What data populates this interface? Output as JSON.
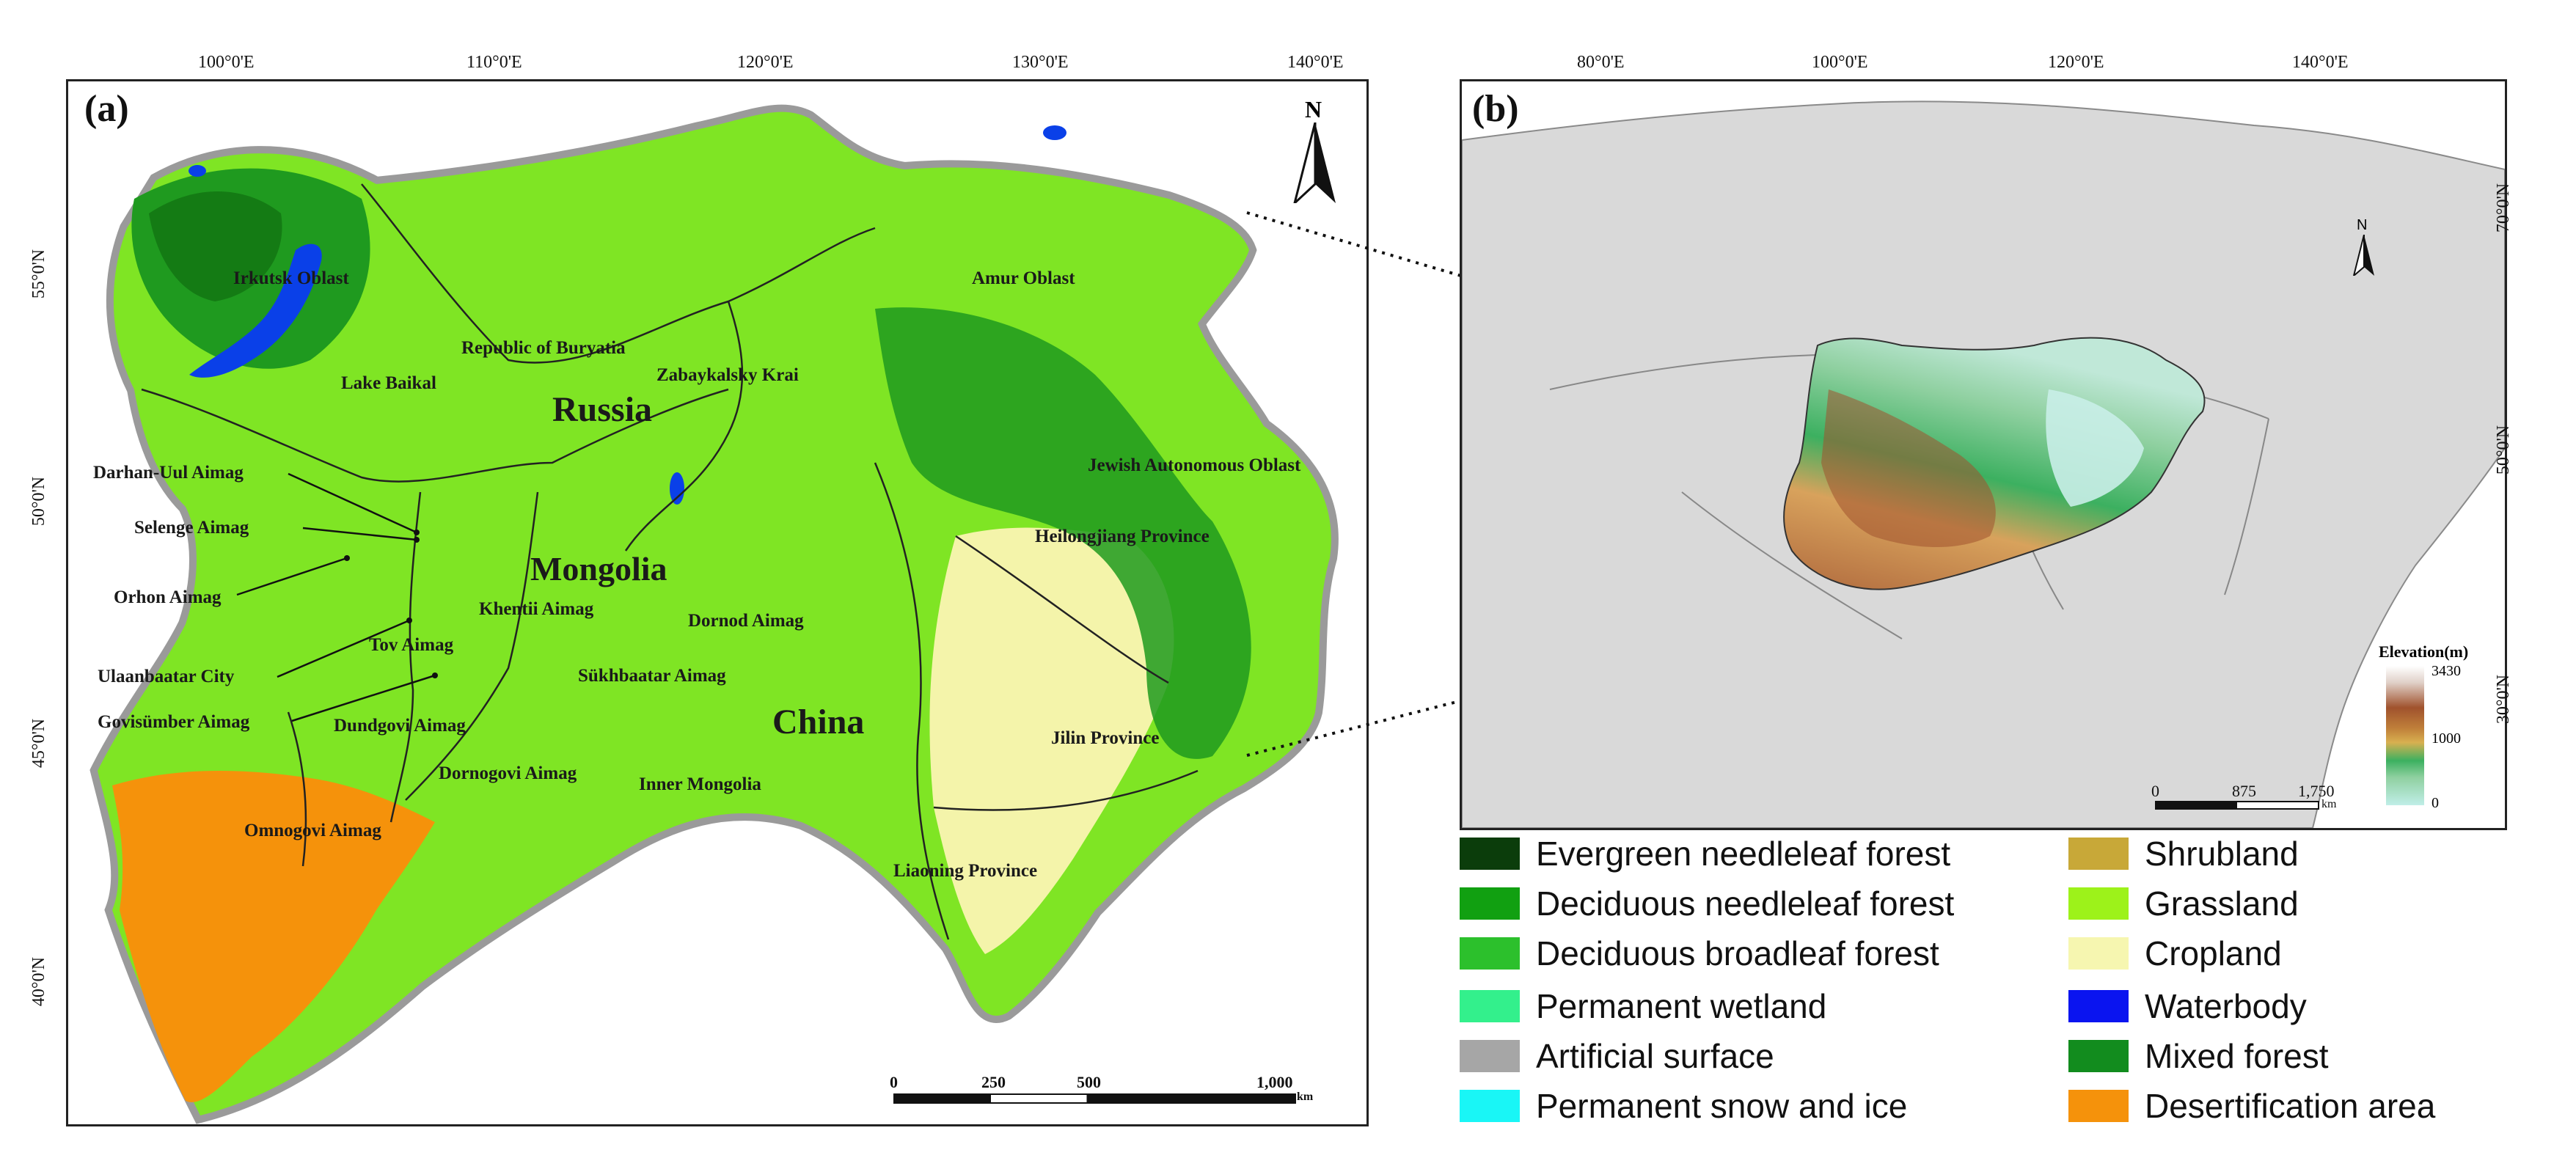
{
  "panel_a": {
    "label": "(a)",
    "lon_ticks": [
      "100°0'E",
      "110°0'E",
      "120°0'E",
      "130°0'E",
      "140°0'E"
    ],
    "lat_ticks": [
      "55°0'N",
      "50°0'N",
      "45°0'N",
      "40°0'N"
    ],
    "north": "N",
    "places": {
      "irkutsk": "Irkutsk Oblast",
      "amur": "Amur Oblast",
      "buryatia": "Republic of Buryatia",
      "zabaykalsky": "Zabaykalsky Krai",
      "baikal": "Lake Baikal",
      "russia": "Russia",
      "darhan": "Darhan-Uul Aimag",
      "jewish": "Jewish Autonomous Oblast",
      "selenge": "Selenge Aimag",
      "heilongjiang": "Heilongjiang Province",
      "orhon": "Orhon Aimag",
      "mongolia": "Mongolia",
      "khentii": "Khentii Aimag",
      "dornod": "Dornod Aimag",
      "tov": "Tov Aimag",
      "ulaanbaatar": "Ulaanbaatar City",
      "sukhbaatar": "Sükhbaatar Aimag",
      "govisumber": "Govisümber Aimag",
      "dundgovi": "Dundgovi Aimag",
      "china": "China",
      "jilin": "Jilin Province",
      "dornogovi": "Dornogovi Aimag",
      "inner_mongolia": "Inner Mongolia",
      "omnogovi": "Omnogovi Aimag",
      "liaoning": "Liaoning Province"
    },
    "scalebar": {
      "labels": [
        "0",
        "250",
        "500",
        "1,000"
      ],
      "unit": "km"
    }
  },
  "panel_b": {
    "label": "(b)",
    "lon_ticks": [
      "80°0'E",
      "100°0'E",
      "120°0'E",
      "140°0'E"
    ],
    "lat_ticks": [
      "70°0'N",
      "50°0'N",
      "30°0'N"
    ],
    "north": "N",
    "elevation": {
      "title": "Elevation(m)",
      "max": "3430",
      "mid": "1000",
      "min": "0"
    },
    "scalebar": {
      "labels": [
        "0",
        "875",
        "1,750"
      ],
      "unit": "km"
    }
  },
  "legend": [
    {
      "label": "Evergreen needleleaf forest",
      "color": "#0b3d0b"
    },
    {
      "label": "Shrubland",
      "color": "#c8a838"
    },
    {
      "label": "Deciduous needleleaf forest",
      "color": "#11a011"
    },
    {
      "label": "Grassland",
      "color": "#9df21a"
    },
    {
      "label": "Deciduous broadleaf forest",
      "color": "#2cc02c"
    },
    {
      "label": "Cropland",
      "color": "#f6f6b0"
    },
    {
      "label": "Permanent wetland",
      "color": "#33f08c"
    },
    {
      "label": "Waterbody",
      "color": "#0a14f0"
    },
    {
      "label": "Artificial surface",
      "color": "#a6a6a6"
    },
    {
      "label": "Mixed forest",
      "color": "#128c1e"
    },
    {
      "label": "Permanent snow and ice",
      "color": "#19f6f6"
    },
    {
      "label": "Desertification area",
      "color": "#f5920b"
    }
  ]
}
